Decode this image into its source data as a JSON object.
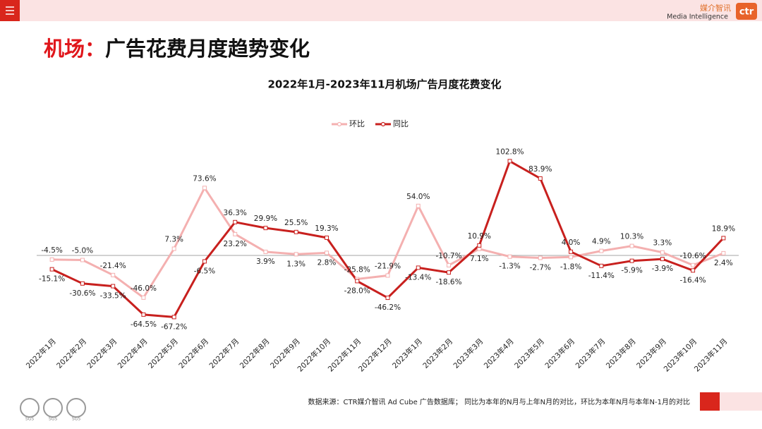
{
  "header": {
    "title_accent": "机场：",
    "title_rest": "广告花费月度趋势变化",
    "logo_cn": "媒介智讯",
    "logo_en": "Media Intelligence",
    "logo_mark": "ctr"
  },
  "chart_data": {
    "type": "line",
    "title": "2022年1月-2023年11月机场广告月度花费变化",
    "categories": [
      "2022年1月",
      "2022年2月",
      "2022年3月",
      "2022年4月",
      "2022年5月",
      "2022年6月",
      "2022年7月",
      "2022年8月",
      "2022年9月",
      "2022年10月",
      "2022年11月",
      "2022年12月",
      "2023年1月",
      "2023年2月",
      "2023年3月",
      "2023年4月",
      "2023年5月",
      "2023年6月",
      "2023年7月",
      "2023年8月",
      "2023年9月",
      "2023年10月",
      "2023年11月"
    ],
    "series": [
      {
        "name": "环比",
        "color": "#f4b0b0",
        "values": [
          -4.5,
          -5.0,
          -21.4,
          -46.0,
          7.3,
          73.6,
          23.2,
          3.9,
          1.3,
          2.8,
          -25.8,
          -21.9,
          54.0,
          -10.7,
          7.1,
          -1.3,
          -2.7,
          -1.8,
          4.9,
          10.3,
          3.3,
          -10.6,
          2.4
        ],
        "value_labels": [
          "-4.5%",
          "-5.0%",
          "-21.4%",
          "-46.0%",
          "7.3%",
          "73.6%",
          "23.2%",
          "3.9%",
          "1.3%",
          "2.8%",
          "-25.8%",
          "-21.9%",
          "54.0%",
          "-10.7%",
          "7.1%",
          "-1.3%",
          "-2.7%",
          "-1.8%",
          "4.9%",
          "10.3%",
          "3.3%",
          "-10.6%",
          "2.4%"
        ]
      },
      {
        "name": "同比",
        "color": "#c8201e",
        "values": [
          -15.1,
          -30.6,
          -33.5,
          -64.5,
          -67.2,
          -6.5,
          36.3,
          29.9,
          25.5,
          19.3,
          -28.0,
          -46.2,
          -13.4,
          -18.6,
          10.9,
          102.8,
          83.9,
          4.0,
          -11.4,
          -5.9,
          -3.9,
          -16.4,
          18.9
        ],
        "value_labels": [
          "-15.1%",
          "-30.6%",
          "-33.5%",
          "-64.5%",
          "-67.2%",
          "-6.5%",
          "36.3%",
          "29.9%",
          "25.5%",
          "19.3%",
          "-28.0%",
          "-46.2%",
          "-13.4%",
          "-18.6%",
          "10.9%",
          "102.8%",
          "83.9%",
          "4.0%",
          "-11.4%",
          "-5.9%",
          "-3.9%",
          "-16.4%",
          "18.9%"
        ]
      }
    ],
    "ylim": [
      -80,
      120
    ],
    "legend": "top"
  },
  "footer": {
    "source": "数据来源：CTR媒介智讯 Ad Cube 广告数据库； 同比为本年的N月与上年N月的对比，环比为本年N月与本年N-1月的对比",
    "badges": [
      "SGS",
      "SGS",
      "SGS"
    ]
  }
}
